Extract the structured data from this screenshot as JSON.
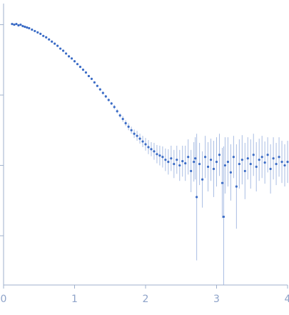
{
  "chart_data": {
    "type": "scatter",
    "title": "",
    "xlabel": "",
    "ylabel": "",
    "xlim": [
      0,
      4
    ],
    "ylog": true,
    "ylim_decades": [
      -3.7,
      0.3
    ],
    "ytick_decades": [
      -3,
      -2,
      -1,
      0
    ],
    "ytick_labels_shown": false,
    "xticks": [
      0,
      1,
      2,
      3,
      4
    ],
    "xtick_labels": [
      "0",
      "1",
      "2",
      "3",
      "4"
    ],
    "grid": false,
    "legend": "none",
    "colors": {
      "points": "#3b6cc6",
      "errorbars": "#a9bde3",
      "axes": "#9fb0cc",
      "ticklabels": "#8ea3c9"
    },
    "series": [
      {
        "x": [
          0.12,
          0.15,
          0.18,
          0.21,
          0.24,
          0.27,
          0.3,
          0.33,
          0.36,
          0.4,
          0.44,
          0.48,
          0.52,
          0.56,
          0.6,
          0.64,
          0.68,
          0.72,
          0.76,
          0.8,
          0.84,
          0.88,
          0.92,
          0.96,
          1.0,
          1.04,
          1.08,
          1.12,
          1.16,
          1.2,
          1.24,
          1.28,
          1.32,
          1.36,
          1.4,
          1.44,
          1.48,
          1.52,
          1.56,
          1.6,
          1.64,
          1.68,
          1.72,
          1.76,
          1.8,
          1.84,
          1.88,
          1.92,
          1.96,
          2.0,
          2.04,
          2.08,
          2.12,
          2.16,
          2.2,
          2.24,
          2.28,
          2.32,
          2.36,
          2.4,
          2.44,
          2.48,
          2.52,
          2.56,
          2.6,
          2.64,
          2.68,
          2.7,
          2.72,
          2.76,
          2.8,
          2.84,
          2.88,
          2.92,
          2.96,
          3.0,
          3.04,
          3.08,
          3.1,
          3.12,
          3.16,
          3.2,
          3.24,
          3.28,
          3.32,
          3.36,
          3.4,
          3.44,
          3.48,
          3.52,
          3.56,
          3.6,
          3.64,
          3.68,
          3.72,
          3.76,
          3.8,
          3.84,
          3.88,
          3.92,
          3.96,
          4.0
        ],
        "y_decades": [
          0.01,
          0.0,
          0.01,
          -0.01,
          0.0,
          -0.02,
          -0.03,
          -0.04,
          -0.05,
          -0.07,
          -0.09,
          -0.11,
          -0.13,
          -0.16,
          -0.18,
          -0.21,
          -0.24,
          -0.27,
          -0.3,
          -0.34,
          -0.37,
          -0.41,
          -0.45,
          -0.48,
          -0.52,
          -0.56,
          -0.6,
          -0.64,
          -0.68,
          -0.73,
          -0.77,
          -0.82,
          -0.87,
          -0.92,
          -0.97,
          -1.02,
          -1.07,
          -1.12,
          -1.17,
          -1.23,
          -1.29,
          -1.34,
          -1.4,
          -1.45,
          -1.5,
          -1.55,
          -1.58,
          -1.62,
          -1.66,
          -1.7,
          -1.74,
          -1.77,
          -1.8,
          -1.84,
          -1.86,
          -1.88,
          -1.92,
          -1.95,
          -1.9,
          -1.98,
          -1.92,
          -2.0,
          -1.94,
          -1.97,
          -1.88,
          -2.08,
          -1.95,
          -1.9,
          -2.45,
          -1.98,
          -2.2,
          -1.88,
          -2.02,
          -1.92,
          -2.05,
          -1.95,
          -1.85,
          -2.25,
          -2.73,
          -2.0,
          -1.95,
          -2.1,
          -1.88,
          -2.3,
          -1.98,
          -1.92,
          -2.08,
          -1.9,
          -1.98,
          -1.85,
          -2.02,
          -1.92,
          -1.88,
          -1.96,
          -1.85,
          -2.05,
          -1.9,
          -1.98,
          -1.88,
          -1.95,
          -2.0,
          -1.95
        ],
        "err_decades": [
          0.01,
          0.01,
          0.01,
          0.01,
          0.01,
          0.01,
          0.01,
          0.01,
          0.01,
          0.01,
          0.01,
          0.01,
          0.01,
          0.01,
          0.01,
          0.01,
          0.01,
          0.01,
          0.01,
          0.01,
          0.01,
          0.01,
          0.01,
          0.01,
          0.01,
          0.01,
          0.01,
          0.01,
          0.01,
          0.01,
          0.01,
          0.01,
          0.01,
          0.02,
          0.02,
          0.02,
          0.02,
          0.02,
          0.03,
          0.03,
          0.03,
          0.04,
          0.04,
          0.05,
          0.05,
          0.06,
          0.07,
          0.07,
          0.08,
          0.09,
          0.1,
          0.1,
          0.12,
          0.13,
          0.14,
          0.15,
          0.16,
          0.18,
          0.18,
          0.2,
          0.2,
          0.22,
          0.22,
          0.25,
          0.25,
          0.3,
          0.28,
          0.3,
          0.9,
          0.3,
          0.4,
          0.3,
          0.35,
          0.3,
          0.4,
          0.35,
          0.3,
          0.5,
          1.0,
          0.4,
          0.35,
          0.4,
          0.3,
          0.6,
          0.35,
          0.35,
          0.4,
          0.3,
          0.35,
          0.3,
          0.35,
          0.3,
          0.3,
          0.3,
          0.25,
          0.35,
          0.3,
          0.3,
          0.28,
          0.3,
          0.3,
          0.3
        ]
      }
    ]
  }
}
